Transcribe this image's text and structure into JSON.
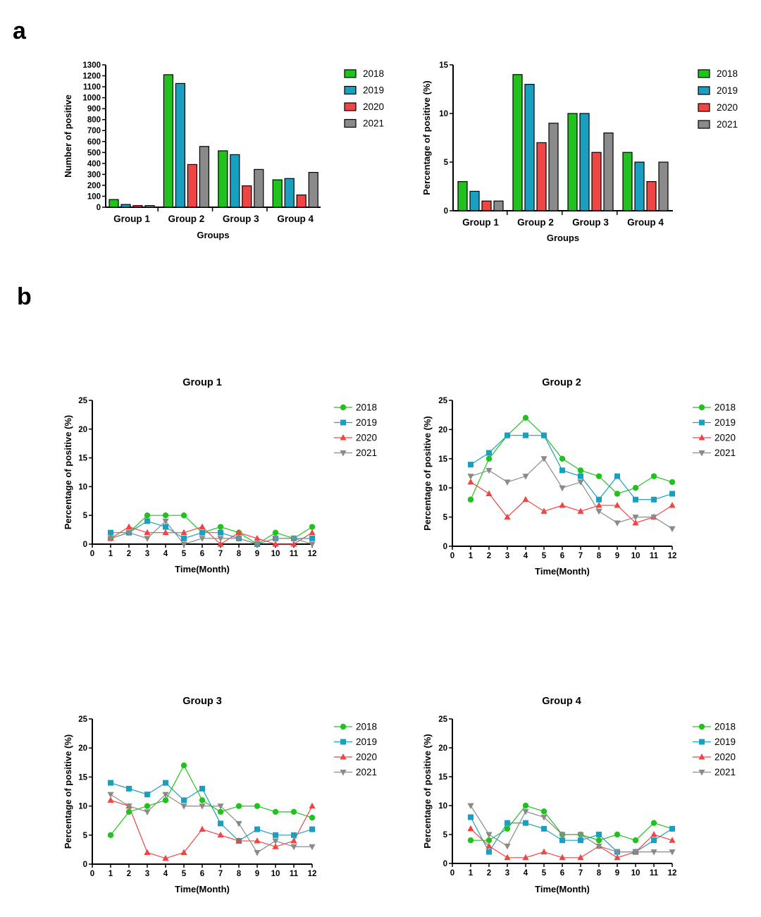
{
  "panels": {
    "a": "a",
    "b": "b"
  },
  "colors": {
    "2018": "#22c21e",
    "2019": "#1a9fbf",
    "2020": "#f04545",
    "2021": "#8a8a8a"
  },
  "chart_data": [
    {
      "type": "bar",
      "title": "",
      "xlabel": "Groups",
      "ylabel": "Number of positive",
      "categories": [
        "Group 1",
        "Group 2",
        "Group 3",
        "Group 4"
      ],
      "ylim": [
        0,
        1300
      ],
      "yticks": [
        0,
        100,
        200,
        300,
        400,
        500,
        600,
        700,
        800,
        900,
        1000,
        1100,
        1200,
        1300
      ],
      "legend": "right",
      "series": [
        {
          "name": "2018",
          "values": [
            70,
            1210,
            515,
            250
          ]
        },
        {
          "name": "2019",
          "values": [
            25,
            1130,
            480,
            262
          ]
        },
        {
          "name": "2020",
          "values": [
            15,
            390,
            195,
            112
          ]
        },
        {
          "name": "2021",
          "values": [
            15,
            555,
            345,
            318
          ]
        }
      ]
    },
    {
      "type": "bar",
      "title": "",
      "xlabel": "Groups",
      "ylabel": "Percentage of positive (%)",
      "categories": [
        "Group 1",
        "Group 2",
        "Group 3",
        "Group 4"
      ],
      "ylim": [
        0,
        15
      ],
      "yticks": [
        0,
        5,
        10,
        15
      ],
      "legend": "right",
      "series": [
        {
          "name": "2018",
          "values": [
            3,
            14,
            10,
            6
          ]
        },
        {
          "name": "2019",
          "values": [
            2,
            13,
            10,
            5
          ]
        },
        {
          "name": "2020",
          "values": [
            1,
            7,
            6,
            3
          ]
        },
        {
          "name": "2021",
          "values": [
            1,
            9,
            8,
            5
          ]
        }
      ]
    },
    {
      "type": "line",
      "title": "Group 1",
      "xlabel": "Time(Month)",
      "ylabel": "Percentage of positive (%)",
      "x": [
        1,
        2,
        3,
        4,
        5,
        6,
        7,
        8,
        9,
        10,
        11,
        12
      ],
      "xticks": [
        0,
        1,
        2,
        3,
        4,
        5,
        6,
        7,
        8,
        9,
        10,
        11,
        12
      ],
      "ylim": [
        0,
        25
      ],
      "yticks": [
        0,
        5,
        10,
        15,
        20,
        25
      ],
      "legend": "right",
      "series": [
        {
          "name": "2018",
          "marker": "circle",
          "values": [
            1,
            2,
            5,
            5,
            5,
            2,
            3,
            2,
            0,
            2,
            1,
            3
          ]
        },
        {
          "name": "2019",
          "marker": "square",
          "values": [
            2,
            2,
            4,
            3,
            1,
            2,
            2,
            1,
            0,
            1,
            1,
            1
          ]
        },
        {
          "name": "2020",
          "marker": "triangle-up",
          "values": [
            1,
            3,
            2,
            2,
            2,
            3,
            0,
            2,
            1,
            0,
            0,
            2
          ]
        },
        {
          "name": "2021",
          "marker": "triangle-down",
          "values": [
            1,
            2,
            1,
            4,
            0,
            1,
            1,
            1,
            0,
            1,
            1,
            0
          ]
        }
      ]
    },
    {
      "type": "line",
      "title": "Group 2",
      "xlabel": "Time(Month)",
      "ylabel": "Percentage of positive (%)",
      "x": [
        1,
        2,
        3,
        4,
        5,
        6,
        7,
        8,
        9,
        10,
        11,
        12
      ],
      "xticks": [
        0,
        1,
        2,
        3,
        4,
        5,
        6,
        7,
        8,
        9,
        10,
        11,
        12
      ],
      "ylim": [
        0,
        25
      ],
      "yticks": [
        0,
        5,
        10,
        15,
        20,
        25
      ],
      "legend": "right",
      "series": [
        {
          "name": "2018",
          "marker": "circle",
          "values": [
            8,
            15,
            19,
            22,
            19,
            15,
            13,
            12,
            9,
            10,
            12,
            11
          ]
        },
        {
          "name": "2019",
          "marker": "square",
          "values": [
            14,
            16,
            19,
            19,
            19,
            13,
            12,
            8,
            12,
            8,
            8,
            9
          ]
        },
        {
          "name": "2020",
          "marker": "triangle-up",
          "values": [
            11,
            9,
            5,
            8,
            6,
            7,
            6,
            7,
            7,
            4,
            5,
            7
          ]
        },
        {
          "name": "2021",
          "marker": "triangle-down",
          "values": [
            12,
            13,
            11,
            12,
            15,
            10,
            11,
            6,
            4,
            5,
            5,
            3
          ]
        }
      ]
    },
    {
      "type": "line",
      "title": "Group 3",
      "xlabel": "Time(Month)",
      "ylabel": "Percentage of positive (%)",
      "x": [
        1,
        2,
        3,
        4,
        5,
        6,
        7,
        8,
        9,
        10,
        11,
        12
      ],
      "xticks": [
        0,
        1,
        2,
        3,
        4,
        5,
        6,
        7,
        8,
        9,
        10,
        11,
        12
      ],
      "ylim": [
        0,
        25
      ],
      "yticks": [
        0,
        5,
        10,
        15,
        20,
        25
      ],
      "legend": "right",
      "series": [
        {
          "name": "2018",
          "marker": "circle",
          "values": [
            5,
            9,
            10,
            11,
            17,
            11,
            9,
            10,
            10,
            9,
            9,
            8
          ]
        },
        {
          "name": "2019",
          "marker": "square",
          "values": [
            14,
            13,
            12,
            14,
            11,
            13,
            7,
            4,
            6,
            5,
            5,
            6
          ]
        },
        {
          "name": "2020",
          "marker": "triangle-up",
          "values": [
            11,
            10,
            2,
            1,
            2,
            6,
            5,
            4,
            4,
            3,
            4,
            10
          ]
        },
        {
          "name": "2021",
          "marker": "triangle-down",
          "values": [
            12,
            10,
            9,
            12,
            10,
            10,
            10,
            7,
            2,
            4,
            3,
            3
          ]
        }
      ]
    },
    {
      "type": "line",
      "title": "Group 4",
      "xlabel": "Time(Month)",
      "ylabel": "Percentage of positive (%)",
      "x": [
        1,
        2,
        3,
        4,
        5,
        6,
        7,
        8,
        9,
        10,
        11,
        12
      ],
      "xticks": [
        0,
        1,
        2,
        3,
        4,
        5,
        6,
        7,
        8,
        9,
        10,
        11,
        12
      ],
      "ylim": [
        0,
        25
      ],
      "yticks": [
        0,
        5,
        10,
        15,
        20,
        25
      ],
      "legend": "right",
      "series": [
        {
          "name": "2018",
          "marker": "circle",
          "values": [
            4,
            4,
            6,
            10,
            9,
            5,
            5,
            4,
            5,
            4,
            7,
            6
          ]
        },
        {
          "name": "2019",
          "marker": "square",
          "values": [
            8,
            2,
            7,
            7,
            6,
            4,
            4,
            5,
            2,
            2,
            4,
            6
          ]
        },
        {
          "name": "2020",
          "marker": "triangle-up",
          "values": [
            6,
            3,
            1,
            1,
            2,
            1,
            1,
            3,
            1,
            2,
            5,
            4
          ]
        },
        {
          "name": "2021",
          "marker": "triangle-down",
          "values": [
            10,
            5,
            3,
            9,
            8,
            5,
            5,
            3,
            2,
            2,
            2,
            2
          ]
        }
      ]
    }
  ]
}
